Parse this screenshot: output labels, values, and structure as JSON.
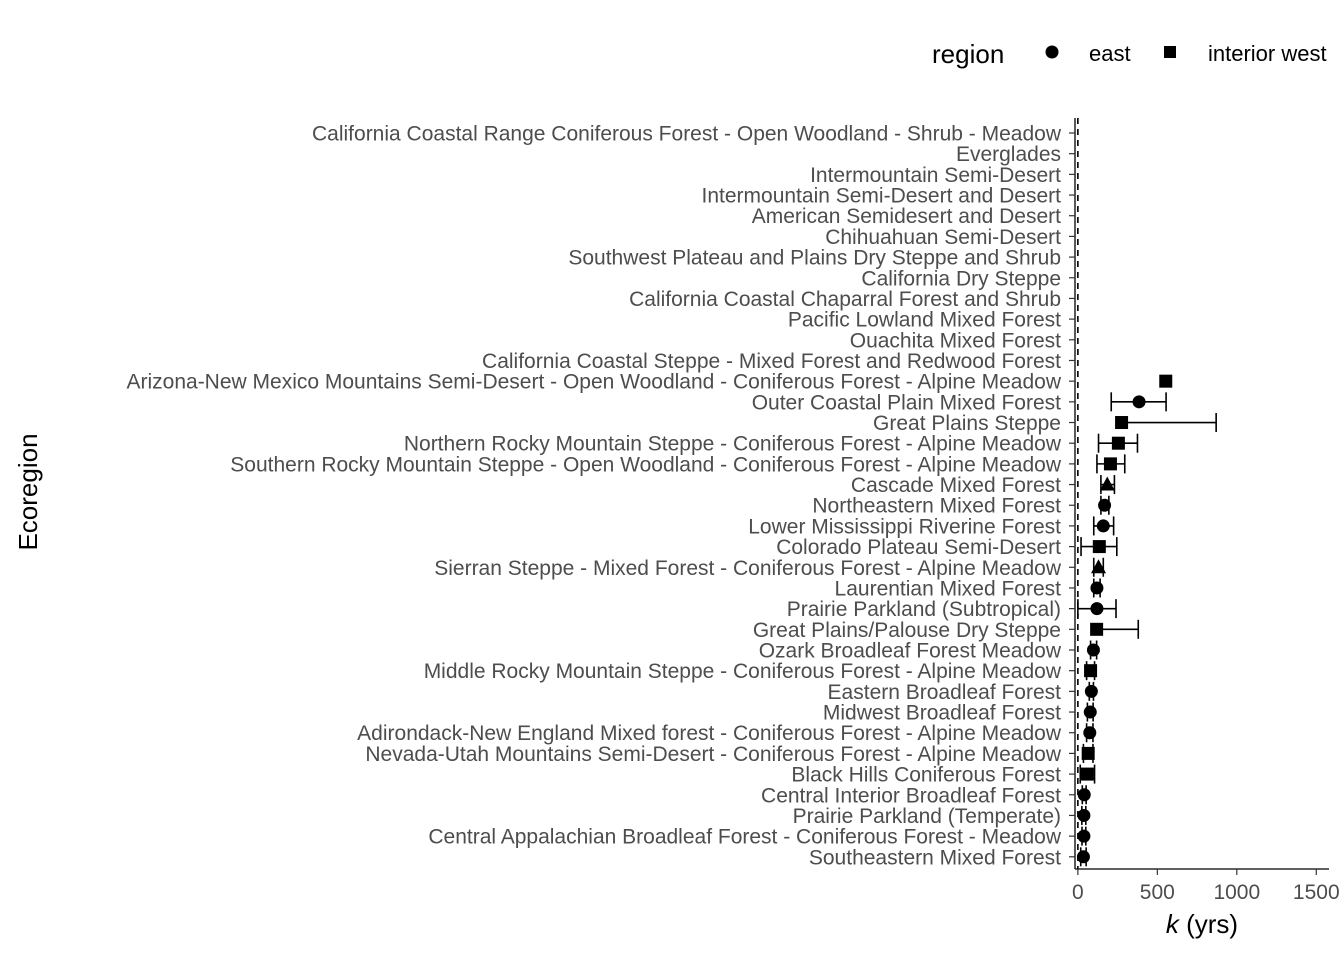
{
  "chart_data": {
    "type": "scatter",
    "orientation": "horizontal",
    "xlabel_italic": "k",
    "xlabel_rest": " (yrs)",
    "ylabel": "Ecoregion",
    "xlim": [
      -18,
      1580
    ],
    "xticks": [
      0,
      500,
      1000,
      1500
    ],
    "reference_line": 0,
    "legend": {
      "title": "region",
      "position": "top-right",
      "entries": [
        {
          "name": "east",
          "shape": "circle"
        },
        {
          "name": "interior west",
          "shape": "square"
        }
      ]
    },
    "colors": {
      "points": "#000000",
      "text": "#4d4d4d"
    },
    "categories": [
      "California Coastal Range Coniferous Forest - Open Woodland - Shrub - Meadow",
      "Everglades",
      "Intermountain Semi-Desert",
      "Intermountain Semi-Desert and Desert",
      "American Semidesert and Desert",
      "Chihuahuan Semi-Desert",
      "Southwest Plateau and Plains Dry Steppe and Shrub",
      "California Dry Steppe",
      "California Coastal Chaparral Forest and Shrub",
      "Pacific Lowland Mixed Forest",
      "Ouachita Mixed Forest",
      "California Coastal Steppe - Mixed Forest and Redwood Forest",
      "Arizona-New Mexico Mountains Semi-Desert - Open Woodland - Coniferous Forest - Alpine Meadow",
      "Outer Coastal Plain Mixed Forest",
      "Great Plains Steppe",
      "Northern Rocky Mountain Steppe - Coniferous Forest - Alpine Meadow",
      "Southern Rocky Mountain Steppe - Open Woodland - Coniferous Forest - Alpine Meadow",
      "Cascade Mixed Forest",
      "Northeastern Mixed Forest",
      "Lower Mississippi Riverine Forest",
      "Colorado Plateau Semi-Desert",
      "Sierran Steppe - Mixed Forest - Coniferous Forest - Alpine Meadow",
      "Laurentian Mixed Forest",
      "Prairie Parkland (Subtropical)",
      "Great Plains/Palouse Dry Steppe",
      "Ozark Broadleaf Forest Meadow",
      "Middle Rocky Mountain Steppe - Coniferous Forest - Alpine Meadow",
      "Eastern Broadleaf Forest",
      "Midwest Broadleaf Forest",
      "Adirondack-New England Mixed forest - Coniferous Forest - Alpine Meadow",
      "Nevada-Utah Mountains Semi-Desert - Coniferous Forest - Alpine Meadow",
      "Black Hills Coniferous Forest",
      "Central Interior Broadleaf Forest",
      "Prairie Parkland (Temperate)",
      "Central Appalachian Broadleaf Forest - Coniferous Forest - Meadow",
      "Southeastern Mixed Forest"
    ],
    "points": [
      {
        "category": "Arizona-New Mexico Mountains Semi-Desert - Open Woodland - Coniferous Forest - Alpine Meadow",
        "region": "interior west",
        "shape": "square",
        "k": 553
      },
      {
        "category": "Outer Coastal Plain Mixed Forest",
        "region": "east",
        "shape": "circle",
        "k": 385,
        "lo": 210,
        "hi": 555
      },
      {
        "category": "Great Plains Steppe",
        "region": "interior west",
        "shape": "square",
        "k": 275,
        "hi": 870
      },
      {
        "category": "Northern Rocky Mountain Steppe - Coniferous Forest - Alpine Meadow",
        "region": "interior west",
        "shape": "square",
        "k": 255,
        "lo": 130,
        "hi": 375
      },
      {
        "category": "Southern Rocky Mountain Steppe - Open Woodland - Coniferous Forest - Alpine Meadow",
        "region": "interior west",
        "shape": "square",
        "k": 205,
        "lo": 120,
        "hi": 295
      },
      {
        "category": "Cascade Mixed Forest",
        "region": "interior west",
        "shape": "triangle",
        "k": 185,
        "lo": 145,
        "hi": 230
      },
      {
        "category": "Northeastern Mixed Forest",
        "region": "east",
        "shape": "circle",
        "k": 168,
        "lo": 145,
        "hi": 195
      },
      {
        "category": "Lower Mississippi Riverine Forest",
        "region": "east",
        "shape": "circle",
        "k": 160,
        "lo": 100,
        "hi": 225
      },
      {
        "category": "Colorado Plateau Semi-Desert",
        "region": "interior west",
        "shape": "square",
        "k": 135,
        "lo": 20,
        "hi": 245
      },
      {
        "category": "Sierran Steppe - Mixed Forest - Coniferous Forest - Alpine Meadow",
        "region": "interior west",
        "shape": "triangle",
        "k": 130,
        "lo": 100,
        "hi": 160
      },
      {
        "category": "Laurentian Mixed Forest",
        "region": "east",
        "shape": "circle",
        "k": 120,
        "lo": 100,
        "hi": 140
      },
      {
        "category": "Prairie Parkland (Subtropical)",
        "region": "east",
        "shape": "circle",
        "k": 120,
        "lo": 0,
        "hi": 240
      },
      {
        "category": "Great Plains/Palouse Dry Steppe",
        "region": "interior west",
        "shape": "square",
        "k": 118,
        "hi": 380
      },
      {
        "category": "Ozark Broadleaf Forest Meadow",
        "region": "east",
        "shape": "circle",
        "k": 98,
        "lo": 80,
        "hi": 118
      },
      {
        "category": "Middle Rocky Mountain Steppe - Coniferous Forest - Alpine Meadow",
        "region": "interior west",
        "shape": "square",
        "k": 80,
        "lo": 55,
        "hi": 105
      },
      {
        "category": "Eastern Broadleaf Forest",
        "region": "east",
        "shape": "circle",
        "k": 85,
        "lo": 72,
        "hi": 98
      },
      {
        "category": "Midwest Broadleaf Forest",
        "region": "east",
        "shape": "circle",
        "k": 78,
        "lo": 60,
        "hi": 96
      },
      {
        "category": "Adirondack-New England Mixed forest - Coniferous Forest - Alpine Meadow",
        "region": "east",
        "shape": "circle",
        "k": 75,
        "lo": 55,
        "hi": 95
      },
      {
        "category": "Nevada-Utah Mountains Semi-Desert - Coniferous Forest - Alpine Meadow",
        "region": "interior west",
        "shape": "square",
        "k": 65,
        "lo": 35,
        "hi": 95
      },
      {
        "category": "Black Hills Coniferous Forest",
        "region": "interior west",
        "shape": "square",
        "k": 60,
        "lo": 15,
        "hi": 105
      },
      {
        "category": "Central Interior Broadleaf Forest",
        "region": "east",
        "shape": "circle",
        "k": 40,
        "lo": 28,
        "hi": 52
      },
      {
        "category": "Prairie Parkland (Temperate)",
        "region": "east",
        "shape": "circle",
        "k": 38,
        "lo": 25,
        "hi": 50
      },
      {
        "category": "Central Appalachian Broadleaf Forest - Coniferous Forest - Meadow",
        "region": "east",
        "shape": "circle",
        "k": 38,
        "lo": 26,
        "hi": 50
      },
      {
        "category": "Southeastern Mixed Forest",
        "region": "east",
        "shape": "circle",
        "k": 35,
        "lo": 18,
        "hi": 52
      }
    ]
  }
}
